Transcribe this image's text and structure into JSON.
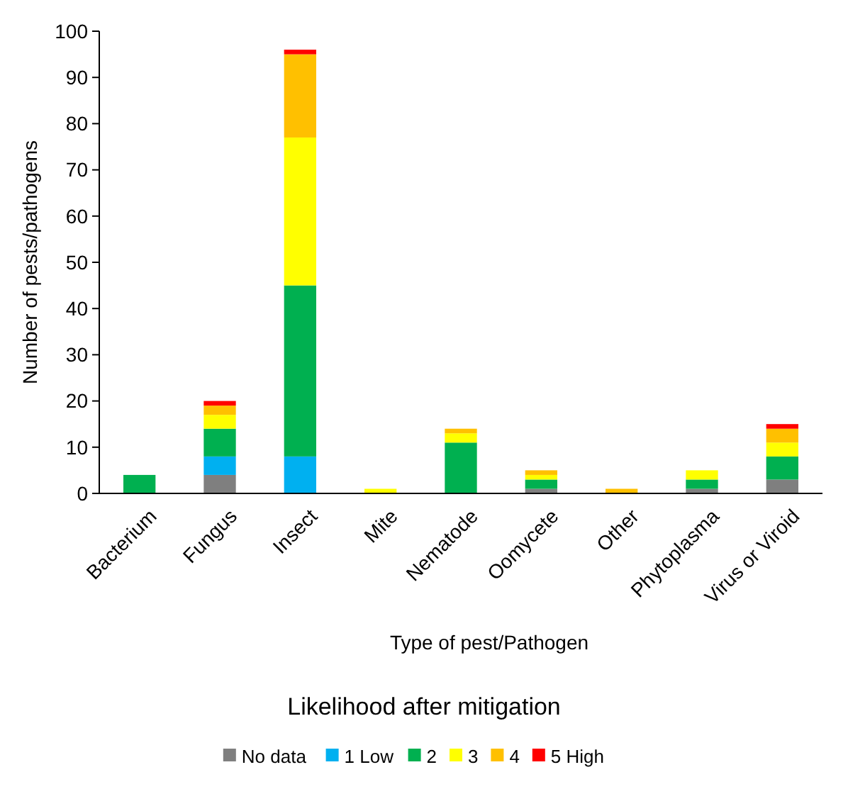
{
  "chart_data": {
    "type": "bar",
    "stacked": true,
    "xlabel": "Type of pest/Pathogen",
    "ylabel": "Number of pests/pathogens",
    "legend_title": "Likelihood after mitigation",
    "legend": "bottom",
    "ylim": [
      0,
      100
    ],
    "yticks": [
      0,
      10,
      20,
      30,
      40,
      50,
      60,
      70,
      80,
      90,
      100
    ],
    "categories": [
      "Bacterium",
      "Fungus",
      "Insect",
      "Mite",
      "Nematode",
      "Oomycete",
      "Other",
      "Phytoplasma",
      "Virus or Viroid"
    ],
    "series": [
      {
        "name": "No data",
        "color": "#7f7f7f",
        "values": [
          0,
          4,
          0,
          0,
          0,
          1,
          0,
          1,
          3
        ]
      },
      {
        "name": "1 Low",
        "color": "#00b0f0",
        "values": [
          0,
          4,
          8,
          0,
          0,
          0,
          0,
          0,
          0
        ]
      },
      {
        "name": "2",
        "color": "#00b050",
        "values": [
          4,
          6,
          37,
          0,
          11,
          2,
          0,
          2,
          5
        ]
      },
      {
        "name": "3",
        "color": "#ffff00",
        "values": [
          0,
          3,
          32,
          1,
          2,
          1,
          0,
          2,
          3
        ]
      },
      {
        "name": "4",
        "color": "#ffc000",
        "values": [
          0,
          2,
          18,
          0,
          1,
          1,
          1,
          0,
          3
        ]
      },
      {
        "name": "5 High",
        "color": "#ff0000",
        "values": [
          0,
          1,
          1,
          0,
          0,
          0,
          0,
          0,
          1
        ]
      }
    ]
  }
}
